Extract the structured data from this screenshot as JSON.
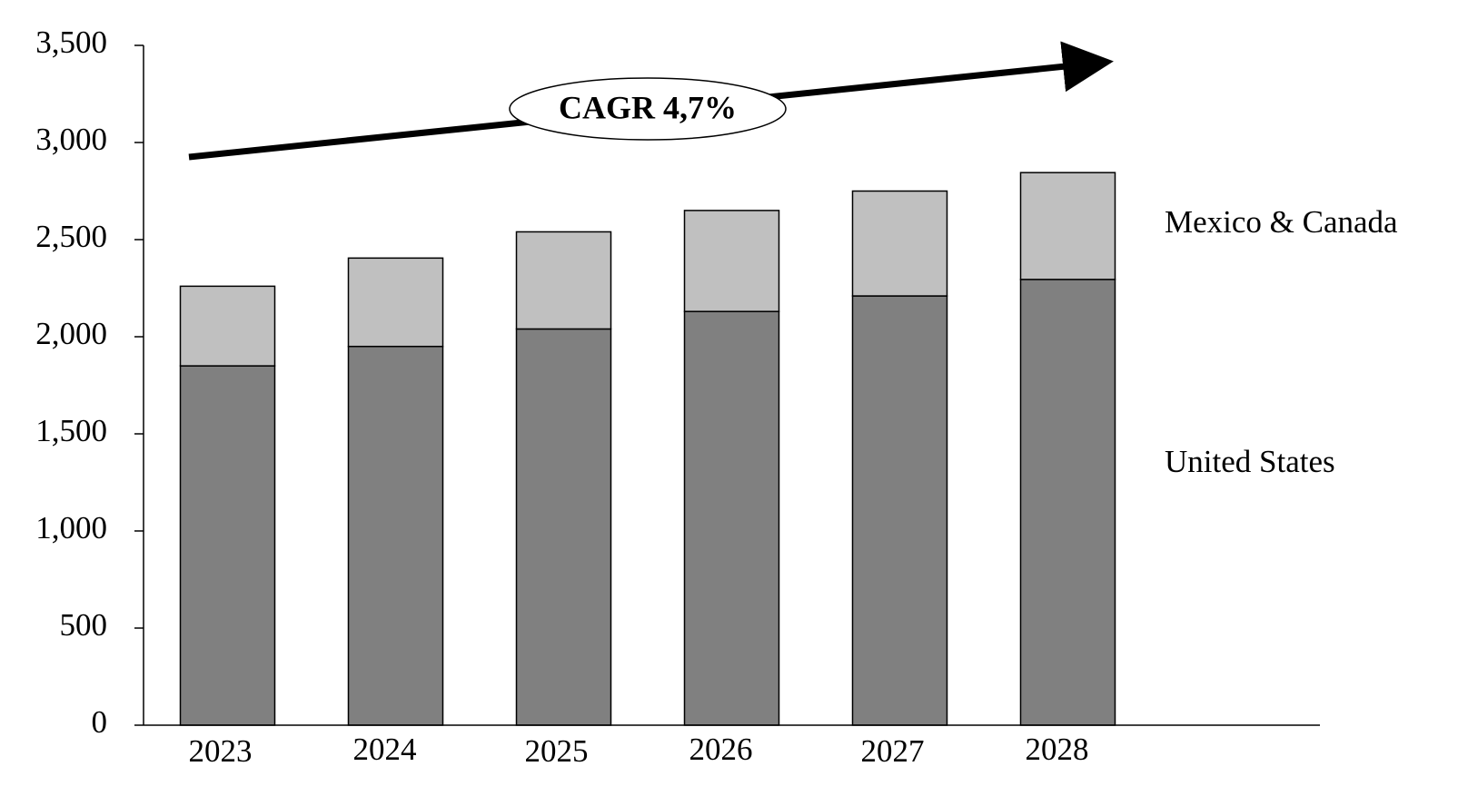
{
  "chart_data": {
    "type": "stacked_bar",
    "annotation": "CAGR 4,7%",
    "categories": [
      "2023",
      "2024",
      "2025",
      "2026",
      "2027",
      "2028"
    ],
    "series": [
      {
        "name": "United States",
        "color": "#808080",
        "values": [
          1850,
          1950,
          2040,
          2130,
          2210,
          2295
        ]
      },
      {
        "name": "Mexico & Canada",
        "color": "#c0c0c0",
        "values": [
          410,
          455,
          500,
          520,
          540,
          550
        ]
      }
    ],
    "ylim": [
      0,
      3500
    ],
    "yticks": [
      0,
      500,
      {
        "value": 1000,
        "label": "1,000"
      },
      {
        "value": 1500,
        "label": "1,500"
      },
      {
        "value": 2000,
        "label": "2,000"
      },
      {
        "value": 2500,
        "label": "2,500"
      },
      {
        "value": 3000,
        "label": "3,000"
      },
      {
        "value": 3500,
        "label": "3,500"
      }
    ],
    "grid": false
  }
}
